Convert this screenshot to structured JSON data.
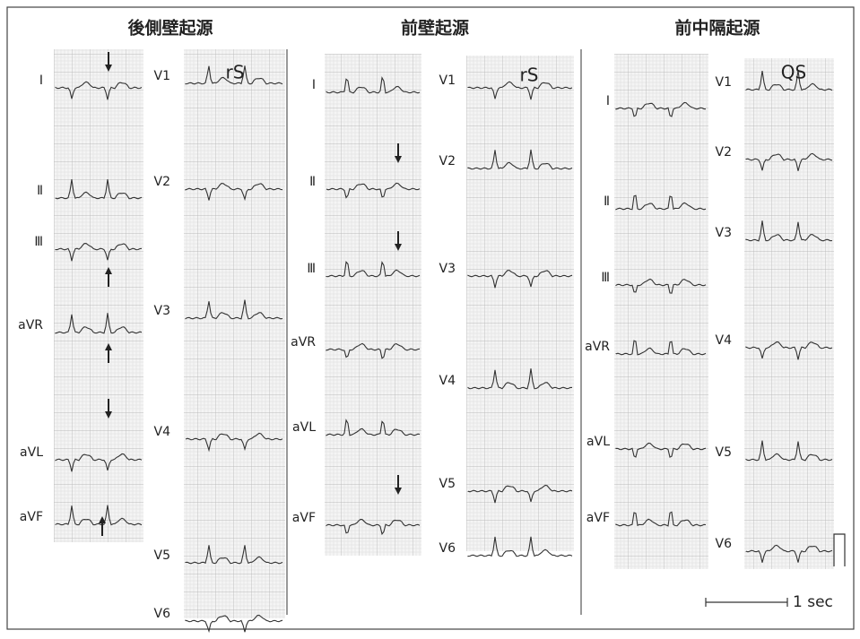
{
  "panels": [
    {
      "title": "後側壁起源",
      "limb_leads": [
        "I",
        "Ⅱ",
        "Ⅲ",
        "aVR",
        "aVL",
        "aVF"
      ],
      "precordial_leads": [
        "V1",
        "V2",
        "V3",
        "V4",
        "V5",
        "V6"
      ],
      "annotation": "rS"
    },
    {
      "title": "前壁起源",
      "limb_leads": [
        "I",
        "Ⅱ",
        "Ⅲ",
        "aVR",
        "aVL",
        "aVF"
      ],
      "precordial_leads": [
        "V1",
        "V2",
        "V3",
        "V4",
        "V5",
        "V6"
      ],
      "annotation": "rS"
    },
    {
      "title": "前中隔起源",
      "limb_leads": [
        "I",
        "Ⅱ",
        "Ⅲ",
        "aVR",
        "aVL",
        "aVF"
      ],
      "precordial_leads": [
        "V1",
        "V2",
        "V3",
        "V4",
        "V5",
        "V6"
      ],
      "annotation": "QS"
    }
  ],
  "scale_label": "1 sec"
}
